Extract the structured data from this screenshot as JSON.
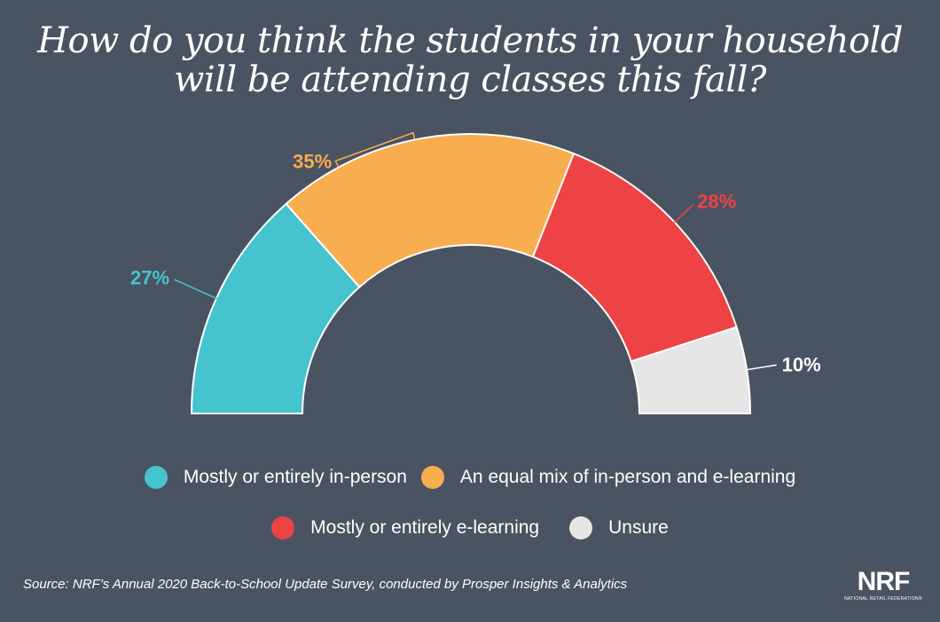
{
  "title": {
    "line1": "How do you think the students in your household",
    "line2": "will be attending classes this fall?"
  },
  "chart_data": {
    "type": "pie",
    "variant": "semicircle-donut",
    "title": "How do you think the students in your household will be attending classes this fall?",
    "series": [
      {
        "name": "Mostly or entirely in-person",
        "value": 27,
        "label": "27%",
        "color": "#45c3cf"
      },
      {
        "name": "An equal mix of in-person and e-learning",
        "value": 35,
        "label": "35%",
        "color": "#f8ad4e"
      },
      {
        "name": "Mostly or entirely e-learning",
        "value": 28,
        "label": "28%",
        "color": "#ee4344"
      },
      {
        "name": "Unsure",
        "value": 10,
        "label": "10%",
        "color": "#e6e6e6"
      }
    ],
    "legend_position": "bottom"
  },
  "source": "Source: NRF’s Annual 2020 Back-to-School Update Survey, conducted by Prosper Insights & Analytics",
  "logo": {
    "mark": "NRF",
    "subtitle": "NATIONAL RETAIL FEDERATION®"
  }
}
